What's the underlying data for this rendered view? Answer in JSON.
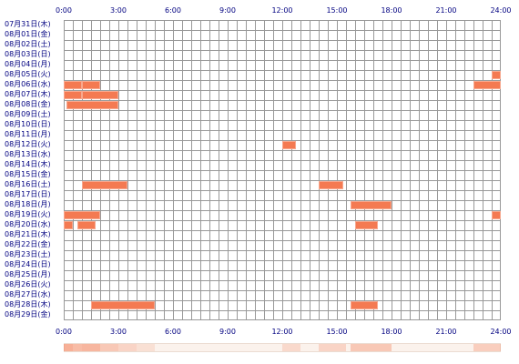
{
  "hour_labels": [
    "0:00",
    "3:00",
    "6:00",
    "9:00",
    "12:00",
    "15:00",
    "18:00",
    "21:00",
    "24:00"
  ],
  "days": [
    "07月31日(木)",
    "08月01日(金)",
    "08月02日(土)",
    "08月03日(日)",
    "08月04日(月)",
    "08月05日(火)",
    "08月06日(水)",
    "08月07日(木)",
    "08月08日(金)",
    "08月09日(土)",
    "08月10日(日)",
    "08月11日(月)",
    "08月12日(火)",
    "08月13日(水)",
    "08月14日(木)",
    "08月15日(金)",
    "08月16日(土)",
    "08月17日(日)",
    "08月18日(月)",
    "08月19日(火)",
    "08月20日(水)",
    "08月21日(木)",
    "08月22日(金)",
    "08月23日(土)",
    "08月24日(日)",
    "08月25日(月)",
    "08月26日(火)",
    "08月27日(水)",
    "08月28日(木)",
    "08月29日(金)"
  ],
  "activity": [
    {
      "day": 5,
      "start": "23:30",
      "end": "24:00"
    },
    {
      "day": 6,
      "start": "0:00",
      "end": "1:00"
    },
    {
      "day": 6,
      "start": "1:00",
      "end": "2:00"
    },
    {
      "day": 6,
      "start": "22:30",
      "end": "24:00"
    },
    {
      "day": 7,
      "start": "0:00",
      "end": "1:00"
    },
    {
      "day": 7,
      "start": "1:00",
      "end": "3:00"
    },
    {
      "day": 8,
      "start": "0:10",
      "end": "3:00"
    },
    {
      "day": 12,
      "start": "12:00",
      "end": "12:45"
    },
    {
      "day": 16,
      "start": "1:00",
      "end": "3:30"
    },
    {
      "day": 16,
      "start": "14:00",
      "end": "15:20"
    },
    {
      "day": 18,
      "start": "15:45",
      "end": "18:00"
    },
    {
      "day": 19,
      "start": "0:00",
      "end": "2:00"
    },
    {
      "day": 19,
      "start": "23:30",
      "end": "24:00"
    },
    {
      "day": 20,
      "start": "0:00",
      "end": "0:30"
    },
    {
      "day": 20,
      "start": "0:45",
      "end": "1:45"
    },
    {
      "day": 20,
      "start": "16:00",
      "end": "17:15"
    },
    {
      "day": 28,
      "start": "1:30",
      "end": "5:00"
    },
    {
      "day": 28,
      "start": "15:45",
      "end": "17:15"
    }
  ],
  "summary_heat": [
    {
      "start": "0:00",
      "end": "0:30",
      "level": 0.55
    },
    {
      "start": "0:30",
      "end": "1:00",
      "level": 0.45
    },
    {
      "start": "1:00",
      "end": "2:00",
      "level": 0.5
    },
    {
      "start": "2:00",
      "end": "3:00",
      "level": 0.35
    },
    {
      "start": "3:00",
      "end": "4:00",
      "level": 0.25
    },
    {
      "start": "4:00",
      "end": "5:00",
      "level": 0.15
    },
    {
      "start": "12:00",
      "end": "13:00",
      "level": 0.2
    },
    {
      "start": "14:00",
      "end": "15:30",
      "level": 0.25
    },
    {
      "start": "15:45",
      "end": "18:00",
      "level": 0.35
    },
    {
      "start": "22:30",
      "end": "24:00",
      "level": 0.3
    }
  ],
  "colors": {
    "activity": "#f47a52",
    "label": "#000080",
    "grid": "#999999",
    "summary_base": "#fbf2ec"
  }
}
